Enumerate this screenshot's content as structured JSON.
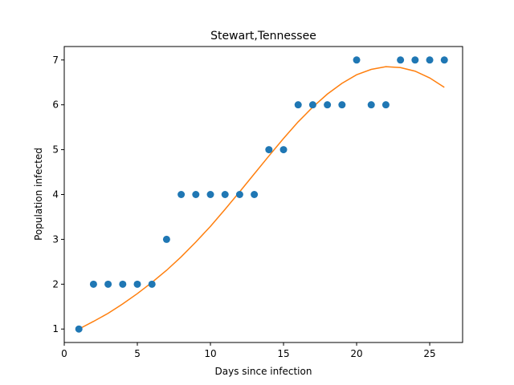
{
  "chart_data": {
    "type": "scatter",
    "title": "Stewart,Tennessee",
    "xlabel": "Days since infection",
    "ylabel": "Population infected",
    "xlim": [
      0,
      27.25
    ],
    "ylim": [
      0.7,
      7.3
    ],
    "xticks": [
      0,
      5,
      10,
      15,
      20,
      25
    ],
    "yticks": [
      1,
      2,
      3,
      4,
      5,
      6,
      7
    ],
    "grid": false,
    "series": [
      {
        "kind": "scatter",
        "color": "#1f77b4",
        "x": [
          1,
          2,
          3,
          4,
          5,
          6,
          7,
          8,
          9,
          10,
          11,
          12,
          13,
          14,
          15,
          16,
          17,
          18,
          19,
          20,
          21,
          22,
          23,
          24,
          25,
          26
        ],
        "y": [
          1,
          2,
          2,
          2,
          2,
          2,
          3,
          4,
          4,
          4,
          4,
          4,
          4,
          5,
          5,
          6,
          6,
          6,
          6,
          7,
          6,
          6,
          7,
          7,
          7,
          7
        ]
      },
      {
        "kind": "line",
        "color": "#ff7f0e",
        "x": [
          1,
          2,
          3,
          4,
          5,
          6,
          7,
          8,
          9,
          10,
          11,
          12,
          13,
          14,
          15,
          16,
          17,
          18,
          19,
          20,
          21,
          22,
          23,
          24,
          25,
          26
        ],
        "y": [
          1.0,
          1.17,
          1.35,
          1.56,
          1.79,
          2.04,
          2.31,
          2.61,
          2.94,
          3.29,
          3.67,
          4.06,
          4.46,
          4.86,
          5.25,
          5.62,
          5.95,
          6.24,
          6.48,
          6.67,
          6.79,
          6.85,
          6.83,
          6.75,
          6.6,
          6.39
        ]
      }
    ]
  }
}
